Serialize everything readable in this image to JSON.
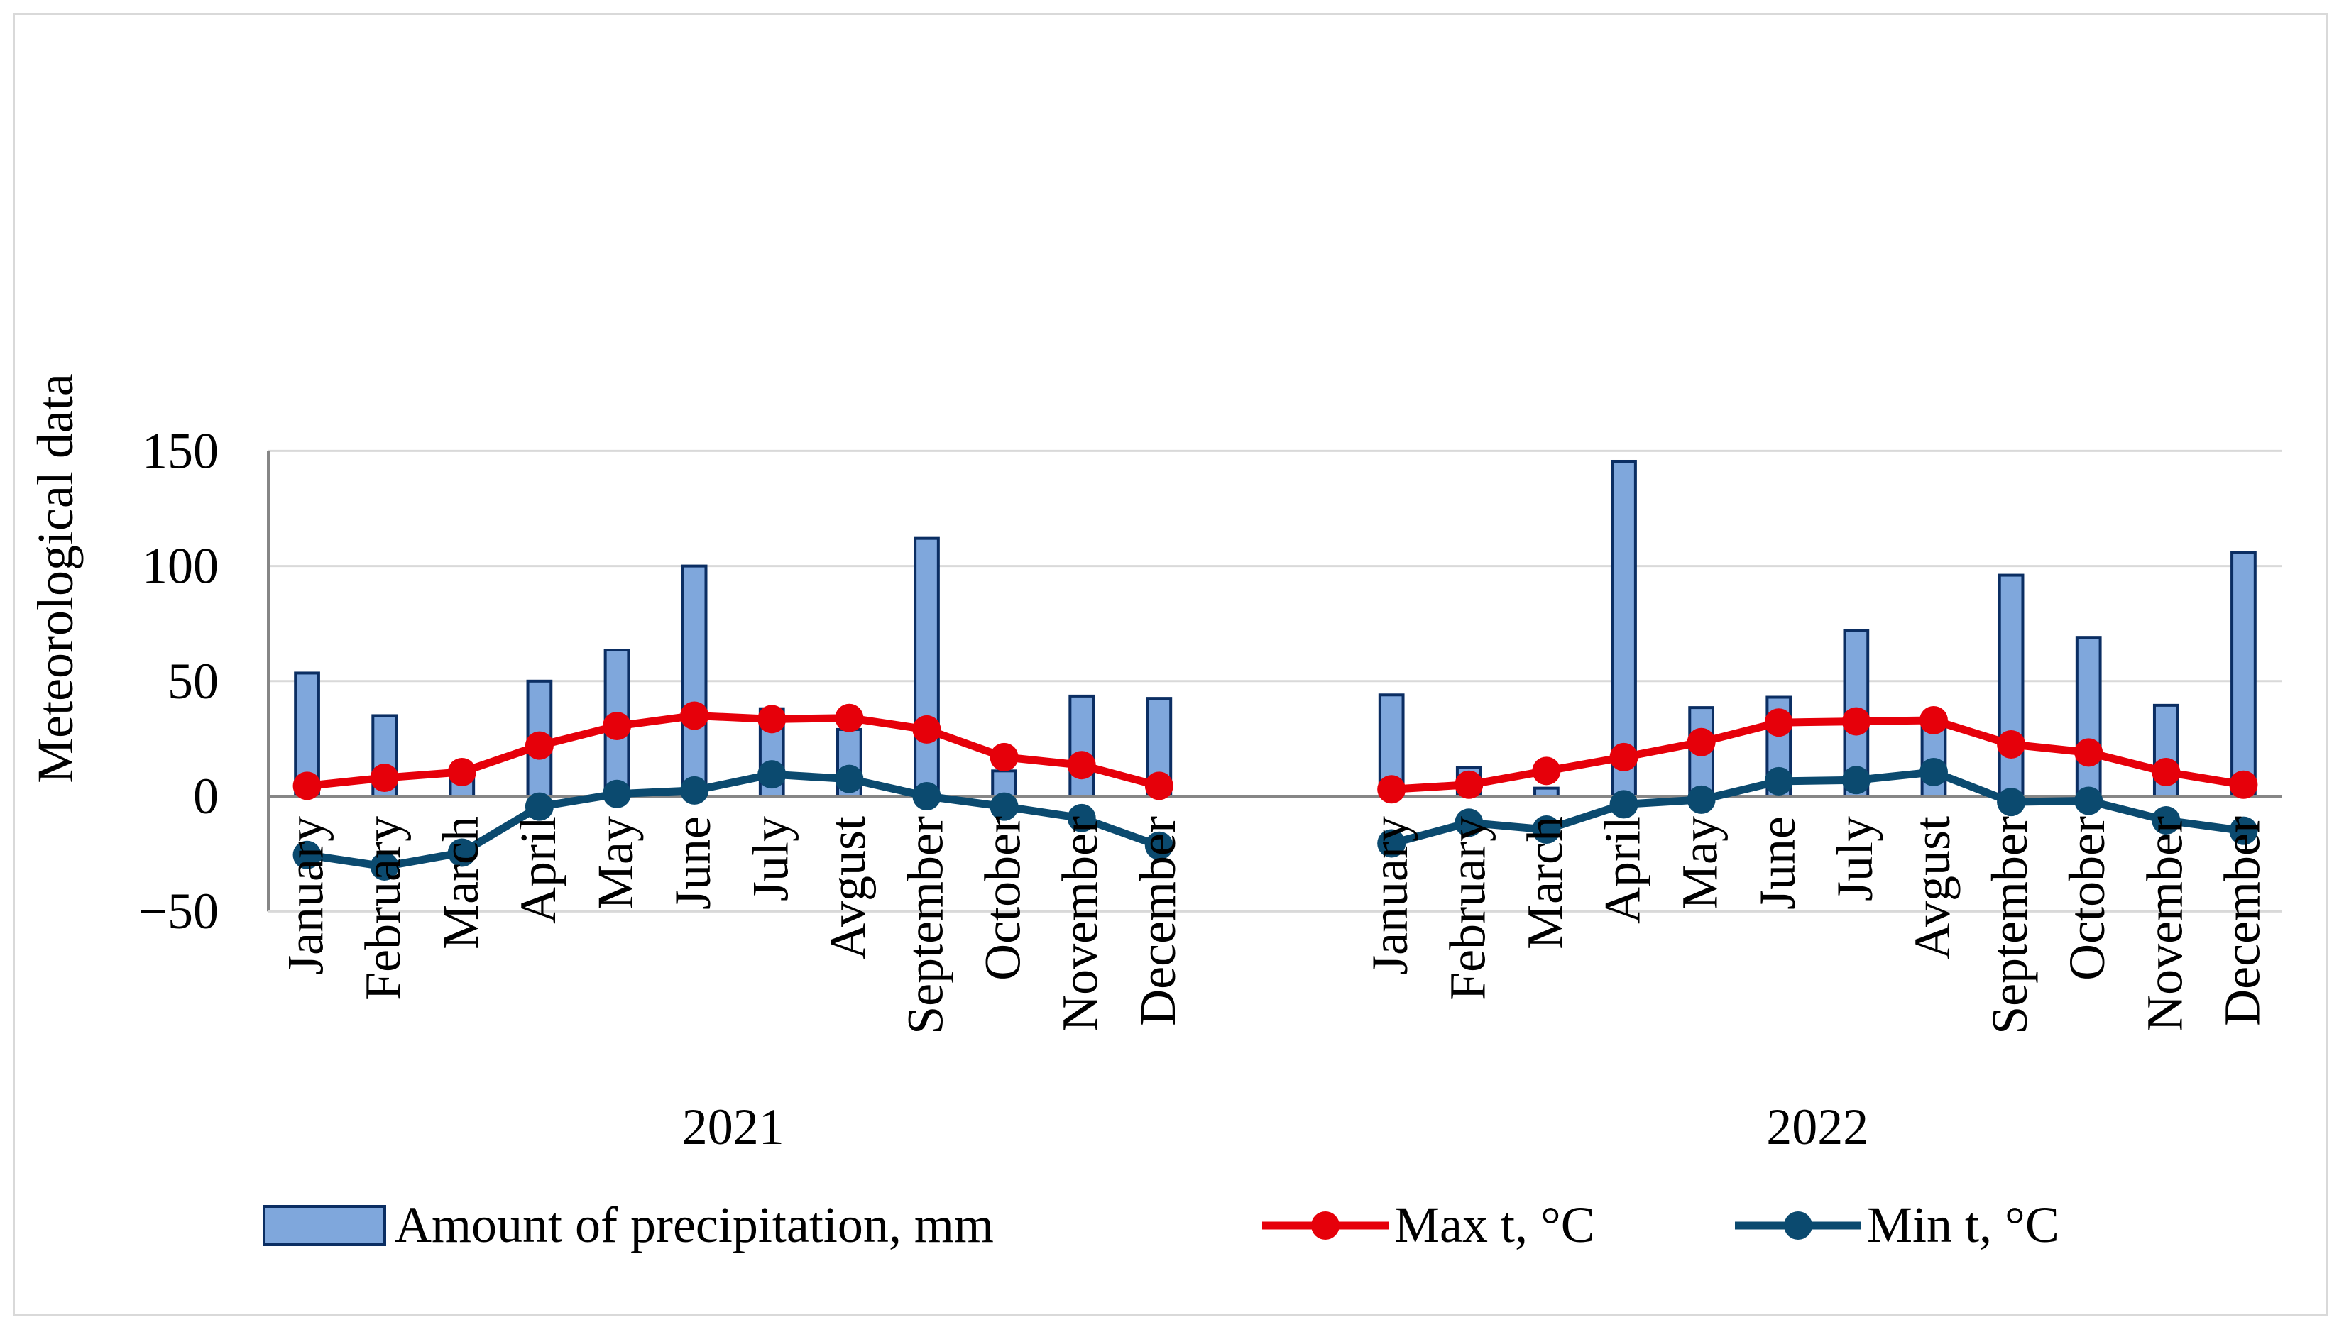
{
  "chart_data": {
    "type": "bar+line",
    "ylabel": "Meteorological data",
    "ylim": [
      -50,
      150
    ],
    "yticks": [
      -50,
      0,
      50,
      100,
      150
    ],
    "ytick_labels": [
      "−50",
      "0",
      "50",
      "100",
      "150"
    ],
    "grid": true,
    "groups": [
      {
        "label": "2021",
        "categories": [
          "January",
          "February",
          "March",
          "April",
          "May",
          "June",
          "July",
          "Avgust",
          "September",
          "October",
          "November",
          "December"
        ]
      },
      {
        "label": "2022",
        "categories": [
          "January",
          "February",
          "March",
          "April",
          "May",
          "June",
          "July",
          "Avgust",
          "September",
          "October",
          "November",
          "December"
        ]
      }
    ],
    "series": [
      {
        "name": "Amount of precipitation, mm",
        "kind": "bar",
        "color": "#7fa7dc",
        "edge_color": "#0b2e63",
        "values": [
          53.5,
          35,
          9,
          50,
          63.5,
          100,
          38,
          29,
          112,
          11,
          43.5,
          42.5,
          44,
          12.5,
          3.5,
          145.5,
          38.5,
          43,
          72,
          30,
          96,
          69,
          39.5,
          106
        ]
      },
      {
        "name": "Max t, °C",
        "kind": "line",
        "color": "#e6000a",
        "values": [
          4.5,
          8,
          10.5,
          22,
          30.5,
          35,
          33.5,
          34,
          29,
          17,
          13.5,
          4.5,
          3,
          5,
          11,
          17,
          23.5,
          32,
          32.5,
          33,
          22.5,
          19,
          10.5,
          5
        ]
      },
      {
        "name": "Min t, °C",
        "kind": "line",
        "color": "#0b4a6f",
        "values": [
          -25.5,
          -30.5,
          -24.5,
          -4.5,
          1,
          2.5,
          9.5,
          7.5,
          0,
          -4.5,
          -9.5,
          -21.5,
          -20.5,
          -11.5,
          -14.5,
          -3.5,
          -1.5,
          6.5,
          7,
          10.5,
          -2.5,
          -2,
          -10.5,
          -15
        ]
      }
    ],
    "legend": {
      "position": "bottom"
    }
  }
}
